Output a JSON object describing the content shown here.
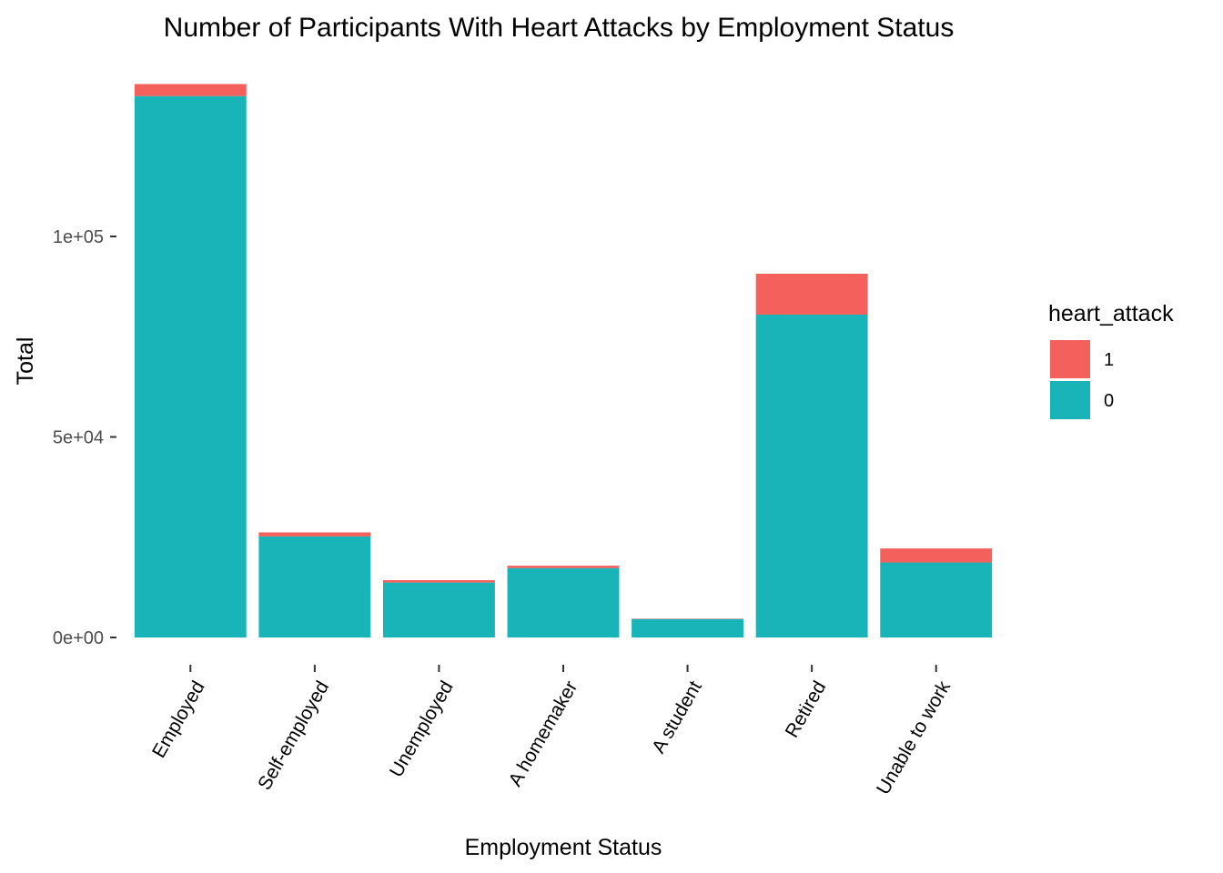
{
  "chart_data": {
    "type": "bar",
    "stacked": true,
    "title": "Number of Participants With Heart Attacks by Employment Status",
    "xlabel": "Employment Status",
    "ylabel": "Total",
    "categories": [
      "Employed",
      "Self-employed",
      "Unemployed",
      "A homemaker",
      "A student",
      "Retired",
      "Unable to work"
    ],
    "ylim": [
      0,
      137000
    ],
    "y_ticks": [
      0,
      50000,
      100000
    ],
    "y_tick_labels": [
      "0e+00",
      "5e+04",
      "1e+05"
    ],
    "series": [
      {
        "name": "0",
        "color": "#19B4B8",
        "values": [
          135000,
          25200,
          13700,
          17300,
          4600,
          80500,
          18700
        ]
      },
      {
        "name": "1",
        "color": "#F4615D",
        "values": [
          3000,
          1000,
          600,
          600,
          100,
          10200,
          3500
        ]
      }
    ],
    "legend": {
      "title": "heart_attack",
      "placement": "right",
      "entries": [
        {
          "label": "1",
          "color": "#F4615D"
        },
        {
          "label": "0",
          "color": "#19B4B8"
        }
      ]
    },
    "grid": false,
    "x_tick_label_rotation_deg": -60
  }
}
